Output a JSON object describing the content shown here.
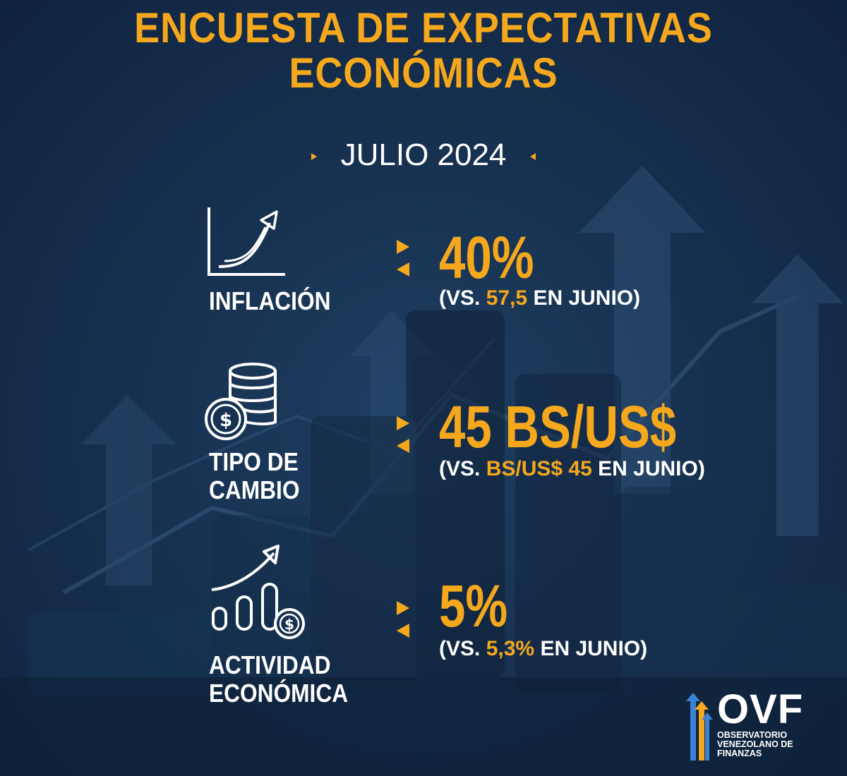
{
  "header": {
    "title_line1": "ENCUESTA DE EXPECTATIVAS",
    "title_line2": "ECONÓMICAS",
    "period": "JULIO 2024"
  },
  "rows": [
    {
      "label_line1": "INFLACIÓN",
      "label_line2": "",
      "icon": "line-chart-arrow-icon",
      "value": "40%",
      "compare_prefix": "(VS.",
      "compare_value": "57,5",
      "compare_suffix": "EN JUNIO)"
    },
    {
      "label_line1": "TIPO DE",
      "label_line2": "CAMBIO",
      "icon": "coin-stack-dollar-icon",
      "value": "45 BS/US$",
      "compare_prefix": "(VS.",
      "compare_value": "BS/US$ 45",
      "compare_suffix": "EN JUNIO)"
    },
    {
      "label_line1": "ACTIVIDAD",
      "label_line2": "ECONÓMICA",
      "icon": "growth-bars-dollar-icon",
      "value": "5%",
      "compare_prefix": "(VS.",
      "compare_value": "5,3%",
      "compare_suffix": "EN JUNIO)"
    }
  ],
  "logo": {
    "acronym": "OVF",
    "line1": "OBSERVATORIO",
    "line2": "VENEZOLANO DE",
    "line3": "FINANZAS"
  },
  "colors": {
    "accent": "#f5a81c",
    "background": "#173150",
    "text": "#ffffff"
  }
}
